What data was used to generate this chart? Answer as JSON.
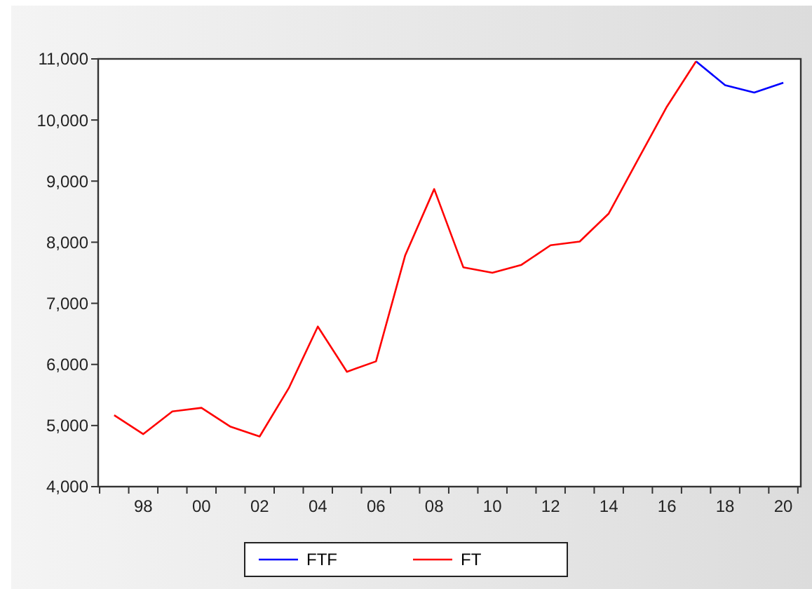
{
  "chart_data": {
    "type": "line",
    "xlim": [
      1996.45,
      2020.6
    ],
    "ylim": [
      4000,
      11000
    ],
    "xticks": [
      {
        "value": 1998,
        "label": "98"
      },
      {
        "value": 2000,
        "label": "00"
      },
      {
        "value": 2002,
        "label": "02"
      },
      {
        "value": 2004,
        "label": "04"
      },
      {
        "value": 2006,
        "label": "06"
      },
      {
        "value": 2008,
        "label": "08"
      },
      {
        "value": 2010,
        "label": "10"
      },
      {
        "value": 2012,
        "label": "12"
      },
      {
        "value": 2014,
        "label": "14"
      },
      {
        "value": 2016,
        "label": "16"
      },
      {
        "value": 2018,
        "label": "18"
      },
      {
        "value": 2020,
        "label": "20"
      }
    ],
    "yticks": [
      {
        "value": 4000,
        "label": "4,000"
      },
      {
        "value": 5000,
        "label": "5,000"
      },
      {
        "value": 6000,
        "label": "6,000"
      },
      {
        "value": 7000,
        "label": "7,000"
      },
      {
        "value": 8000,
        "label": "8,000"
      },
      {
        "value": 9000,
        "label": "9,000"
      },
      {
        "value": 10000,
        "label": "10,000"
      },
      {
        "value": 11000,
        "label": "11,000"
      }
    ],
    "grid": false,
    "legend": "bottom",
    "marker": "none",
    "line_style": "solid",
    "series": [
      {
        "name": "FTF",
        "color": "#0000ff",
        "x": [
          2017,
          2018,
          2019,
          2020
        ],
        "values": [
          10960,
          10570,
          10450,
          10610
        ]
      },
      {
        "name": "FT",
        "color": "#ff0000",
        "x": [
          1997,
          1998,
          1999,
          2000,
          2001,
          2002,
          2003,
          2004,
          2005,
          2006,
          2007,
          2008,
          2009,
          2010,
          2011,
          2012,
          2013,
          2014,
          2015,
          2016,
          2017
        ],
        "values": [
          5170,
          4860,
          5230,
          5290,
          4980,
          4820,
          5610,
          6620,
          5880,
          6050,
          7780,
          8870,
          7590,
          7500,
          7630,
          7950,
          8010,
          8470,
          9350,
          10220,
          10960
        ]
      }
    ]
  }
}
